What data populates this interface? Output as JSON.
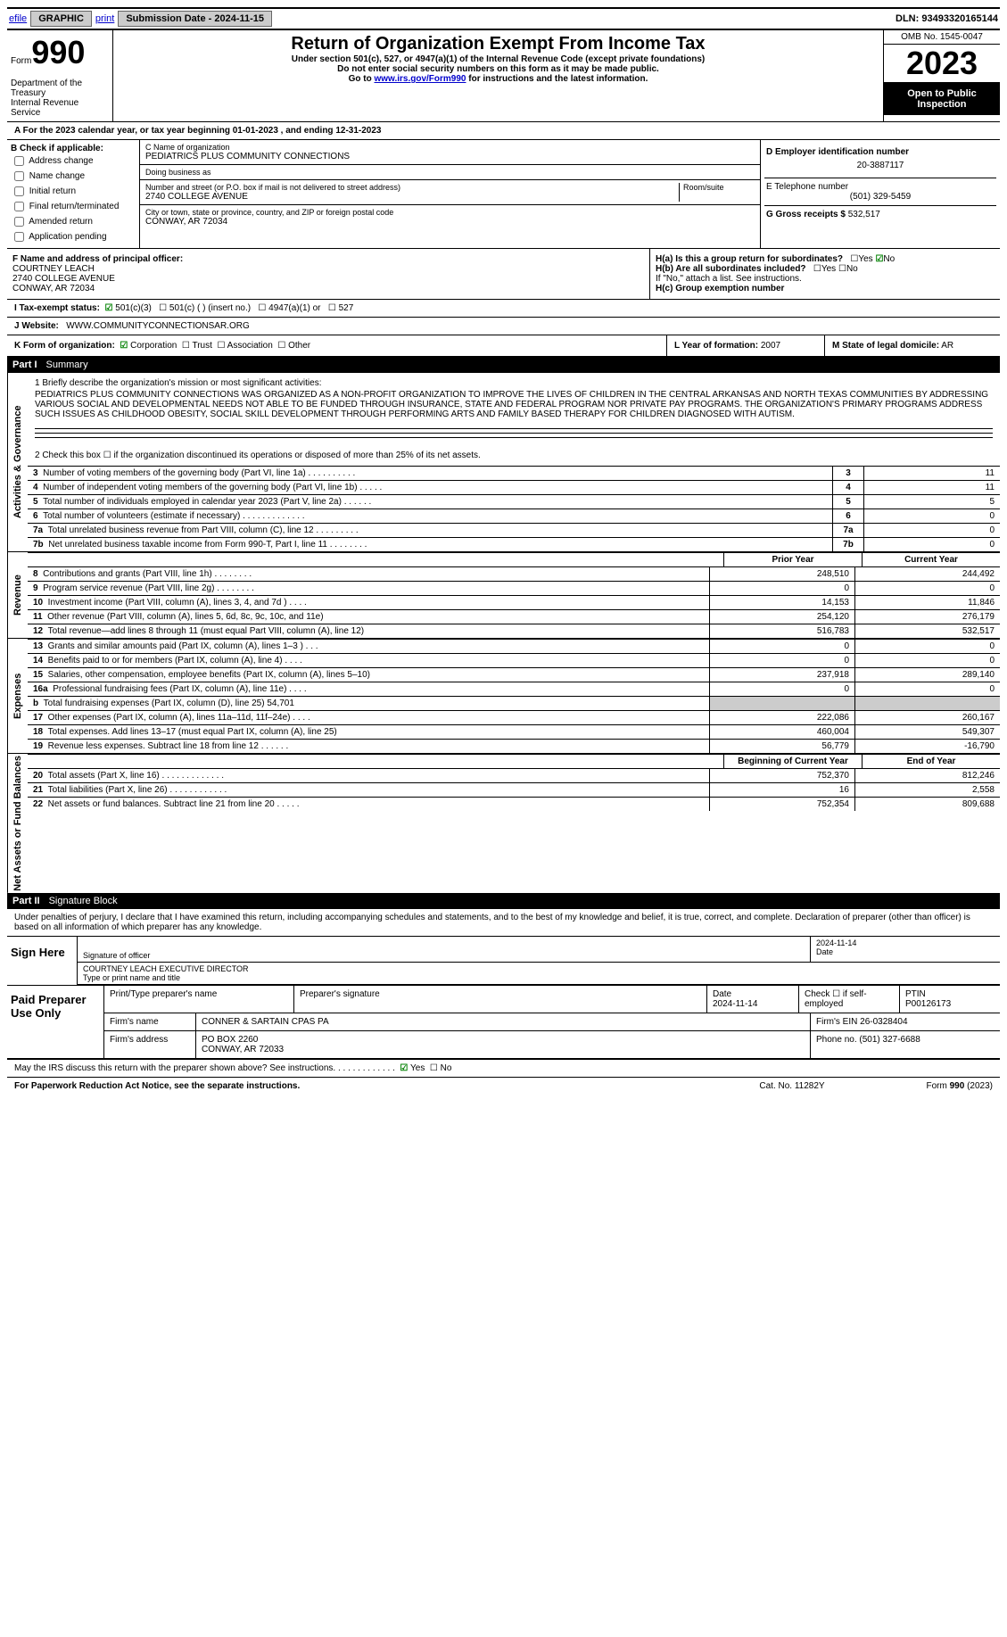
{
  "top": {
    "efile": "efile",
    "graphic": "GRAPHIC",
    "print": "print",
    "sub_label": "Submission Date - 2024-11-15",
    "dln_label": "DLN: 93493320165144"
  },
  "header": {
    "form_label": "Form",
    "form_number": "990",
    "title": "Return of Organization Exempt From Income Tax",
    "sub1": "Under section 501(c), 527, or 4947(a)(1) of the Internal Revenue Code (except private foundations)",
    "sub2": "Do not enter social security numbers on this form as it may be made public.",
    "sub3_pre": "Go to ",
    "sub3_link": "www.irs.gov/Form990",
    "sub3_post": " for instructions and the latest information.",
    "dept": "Department of the Treasury\nInternal Revenue Service",
    "omb": "OMB No. 1545-0047",
    "year": "2023",
    "open": "Open to Public Inspection"
  },
  "rowA": "A For the 2023 calendar year, or tax year beginning 01-01-2023    , and ending 12-31-2023",
  "blockB": {
    "label": "B Check if applicable:",
    "opts": [
      "Address change",
      "Name change",
      "Initial return",
      "Final return/terminated",
      "Amended return",
      "Application pending"
    ]
  },
  "blockC": {
    "name_label": "C Name of organization",
    "name": "PEDIATRICS PLUS COMMUNITY CONNECTIONS",
    "dba_label": "Doing business as",
    "street_label": "Number and street (or P.O. box if mail is not delivered to street address)",
    "room_label": "Room/suite",
    "street": "2740 COLLEGE AVENUE",
    "city_label": "City or town, state or province, country, and ZIP or foreign postal code",
    "city": "CONWAY, AR  72034"
  },
  "blockD": {
    "d_label": "D Employer identification number",
    "d_val": "20-3887117",
    "e_label": "E Telephone number",
    "e_val": "(501) 329-5459",
    "g_label": "G Gross receipts $",
    "g_val": "532,517"
  },
  "blockF": {
    "label": "F  Name and address of principal officer:",
    "name": "COURTNEY LEACH",
    "street": "2740 COLLEGE AVENUE",
    "city": "CONWAY, AR  72034"
  },
  "blockH": {
    "ha": "H(a)  Is this a group return for subordinates?",
    "hb": "H(b)  Are all subordinates included?",
    "hb_note": "If \"No,\" attach a list. See instructions.",
    "hc": "H(c)  Group exemption number",
    "yes": "Yes",
    "no": "No"
  },
  "rowI": {
    "label": "I    Tax-exempt status:",
    "o1": "501(c)(3)",
    "o2": "501(c) (  ) (insert no.)",
    "o3": "4947(a)(1) or",
    "o4": "527"
  },
  "rowJ": {
    "label": "J    Website:",
    "val": "WWW.COMMUNITYCONNECTIONSAR.ORG"
  },
  "rowK": {
    "label": "K Form of organization:",
    "o1": "Corporation",
    "o2": "Trust",
    "o3": "Association",
    "o4": "Other"
  },
  "rowL": {
    "label": "L Year of formation:",
    "val": "2007"
  },
  "rowM": {
    "label": "M State of legal domicile:",
    "val": "AR"
  },
  "part1": {
    "num": "Part I",
    "title": "Summary"
  },
  "mission": {
    "line1": "1 Briefly describe the organization's mission or most significant activities:",
    "text": "PEDIATRICS PLUS COMMUNITY CONNECTIONS WAS ORGANIZED AS A NON-PROFIT ORGANIZATION TO IMPROVE THE LIVES OF CHILDREN IN THE CENTRAL ARKANSAS AND NORTH TEXAS COMMUNITIES BY ADDRESSING VARIOUS SOCIAL AND DEVELOPMENTAL NEEDS NOT ABLE TO BE FUNDED THROUGH INSURANCE, STATE AND FEDERAL PROGRAM NOR PRIVATE PAY PROGRAMS. THE ORGANIZATION'S PRIMARY PROGRAMS ADDRESS SUCH ISSUES AS CHILDHOOD OBESITY, SOCIAL SKILL DEVELOPMENT THROUGH PERFORMING ARTS AND FAMILY BASED THERAPY FOR CHILDREN DIAGNOSED WITH AUTISM."
  },
  "line2": "2   Check this box ☐ if the organization discontinued its operations or disposed of more than 25% of its net assets.",
  "gov_rows": [
    {
      "n": "3",
      "desc": "Number of voting members of the governing body (Part VI, line 1a)  .    .    .    .    .    .    .    .    .    .",
      "val": "11"
    },
    {
      "n": "4",
      "desc": "Number of independent voting members of the governing body (Part VI, line 1b)  .    .    .    .    .",
      "val": "11"
    },
    {
      "n": "5",
      "desc": "Total number of individuals employed in calendar year 2023 (Part V, line 2a)  .    .    .    .    .    .",
      "val": "5"
    },
    {
      "n": "6",
      "desc": "Total number of volunteers (estimate if necessary)   .    .    .    .    .    .    .    .    .    .    .    .    .",
      "val": "0"
    },
    {
      "n": "7a",
      "desc": "Total unrelated business revenue from Part VIII, column (C), line 12  .    .    .    .    .    .    .    .    .",
      "val": "0"
    },
    {
      "n": "7b",
      "desc": "Net unrelated business taxable income from Form 990-T, Part I, line 11  .    .    .    .    .    .    .    .",
      "val": "0"
    }
  ],
  "fin_cols": {
    "prior": "Prior Year",
    "current": "Current Year",
    "boy": "Beginning of Current Year",
    "eoy": "End of Year"
  },
  "revenue": [
    {
      "n": "8",
      "desc": "Contributions and grants (Part VIII, line 1h)   .    .    .    .    .    .    .    .",
      "p": "248,510",
      "c": "244,492"
    },
    {
      "n": "9",
      "desc": "Program service revenue (Part VIII, line 2g)   .    .    .    .    .    .    .    .",
      "p": "0",
      "c": "0"
    },
    {
      "n": "10",
      "desc": "Investment income (Part VIII, column (A), lines 3, 4, and 7d )  .    .    .    .",
      "p": "14,153",
      "c": "11,846"
    },
    {
      "n": "11",
      "desc": "Other revenue (Part VIII, column (A), lines 5, 6d, 8c, 9c, 10c, and 11e)",
      "p": "254,120",
      "c": "276,179"
    },
    {
      "n": "12",
      "desc": "Total revenue—add lines 8 through 11 (must equal Part VIII, column (A), line 12)",
      "p": "516,783",
      "c": "532,517"
    }
  ],
  "expenses": [
    {
      "n": "13",
      "desc": "Grants and similar amounts paid (Part IX, column (A), lines 1–3 )  .    .    .",
      "p": "0",
      "c": "0"
    },
    {
      "n": "14",
      "desc": "Benefits paid to or for members (Part IX, column (A), line 4)  .    .    .    .",
      "p": "0",
      "c": "0"
    },
    {
      "n": "15",
      "desc": "Salaries, other compensation, employee benefits (Part IX, column (A), lines 5–10)",
      "p": "237,918",
      "c": "289,140"
    },
    {
      "n": "16a",
      "desc": "Professional fundraising fees (Part IX, column (A), line 11e)   .    .    .    .",
      "p": "0",
      "c": "0"
    },
    {
      "n": "b",
      "desc": "Total fundraising expenses (Part IX, column (D), line 25) 54,701",
      "p": "",
      "c": "",
      "shaded": true
    },
    {
      "n": "17",
      "desc": "Other expenses (Part IX, column (A), lines 11a–11d, 11f–24e)  .    .    .    .",
      "p": "222,086",
      "c": "260,167"
    },
    {
      "n": "18",
      "desc": "Total expenses. Add lines 13–17 (must equal Part IX, column (A), line 25)",
      "p": "460,004",
      "c": "549,307"
    },
    {
      "n": "19",
      "desc": "Revenue less expenses. Subtract line 18 from line 12  .    .    .    .    .    .",
      "p": "56,779",
      "c": "-16,790"
    }
  ],
  "netassets": [
    {
      "n": "20",
      "desc": "Total assets (Part X, line 16)  .    .    .    .    .    .    .    .    .    .    .    .    .",
      "p": "752,370",
      "c": "812,246"
    },
    {
      "n": "21",
      "desc": "Total liabilities (Part X, line 26)  .    .    .    .    .    .    .    .    .    .    .    .",
      "p": "16",
      "c": "2,558"
    },
    {
      "n": "22",
      "desc": "Net assets or fund balances. Subtract line 21 from line 20  .    .    .    .    .",
      "p": "752,354",
      "c": "809,688"
    }
  ],
  "vlabels": {
    "gov": "Activities & Governance",
    "rev": "Revenue",
    "exp": "Expenses",
    "na": "Net Assets or Fund Balances"
  },
  "part2": {
    "num": "Part II",
    "title": "Signature Block"
  },
  "sig": {
    "intro": "Under penalties of perjury, I declare that I have examined this return, including accompanying schedules and statements, and to the best of my knowledge and belief, it is true, correct, and complete. Declaration of preparer (other than officer) is based on all information of which preparer has any knowledge.",
    "sign_here": "Sign Here",
    "sig_date": "2024-11-14",
    "sig_label": "Signature of officer",
    "date_label": "Date",
    "name": "COURTNEY LEACH  EXECUTIVE DIRECTOR",
    "name_label": "Type or print name and title"
  },
  "prep": {
    "title": "Paid Preparer Use Only",
    "c1": "Print/Type preparer's name",
    "c2": "Preparer's signature",
    "c3_label": "Date",
    "c3": "2024-11-14",
    "c4": "Check ☐ if self-employed",
    "c5_label": "PTIN",
    "c5": "P00126173",
    "firm_label": "Firm's name",
    "firm": "CONNER & SARTAIN CPAS PA",
    "ein_label": "Firm's EIN",
    "ein": "26-0328404",
    "addr_label": "Firm's address",
    "addr1": "PO BOX 2260",
    "addr2": "CONWAY, AR  72033",
    "phone_label": "Phone no.",
    "phone": "(501) 327-6688"
  },
  "discuss": "May the IRS discuss this return with the preparer shown above? See instructions.   .    .    .    .    .    .    .    .    .    .    .    .",
  "footer": {
    "pra": "For Paperwork Reduction Act Notice, see the separate instructions.",
    "cat": "Cat. No. 11282Y",
    "form": "Form 990 (2023)"
  }
}
